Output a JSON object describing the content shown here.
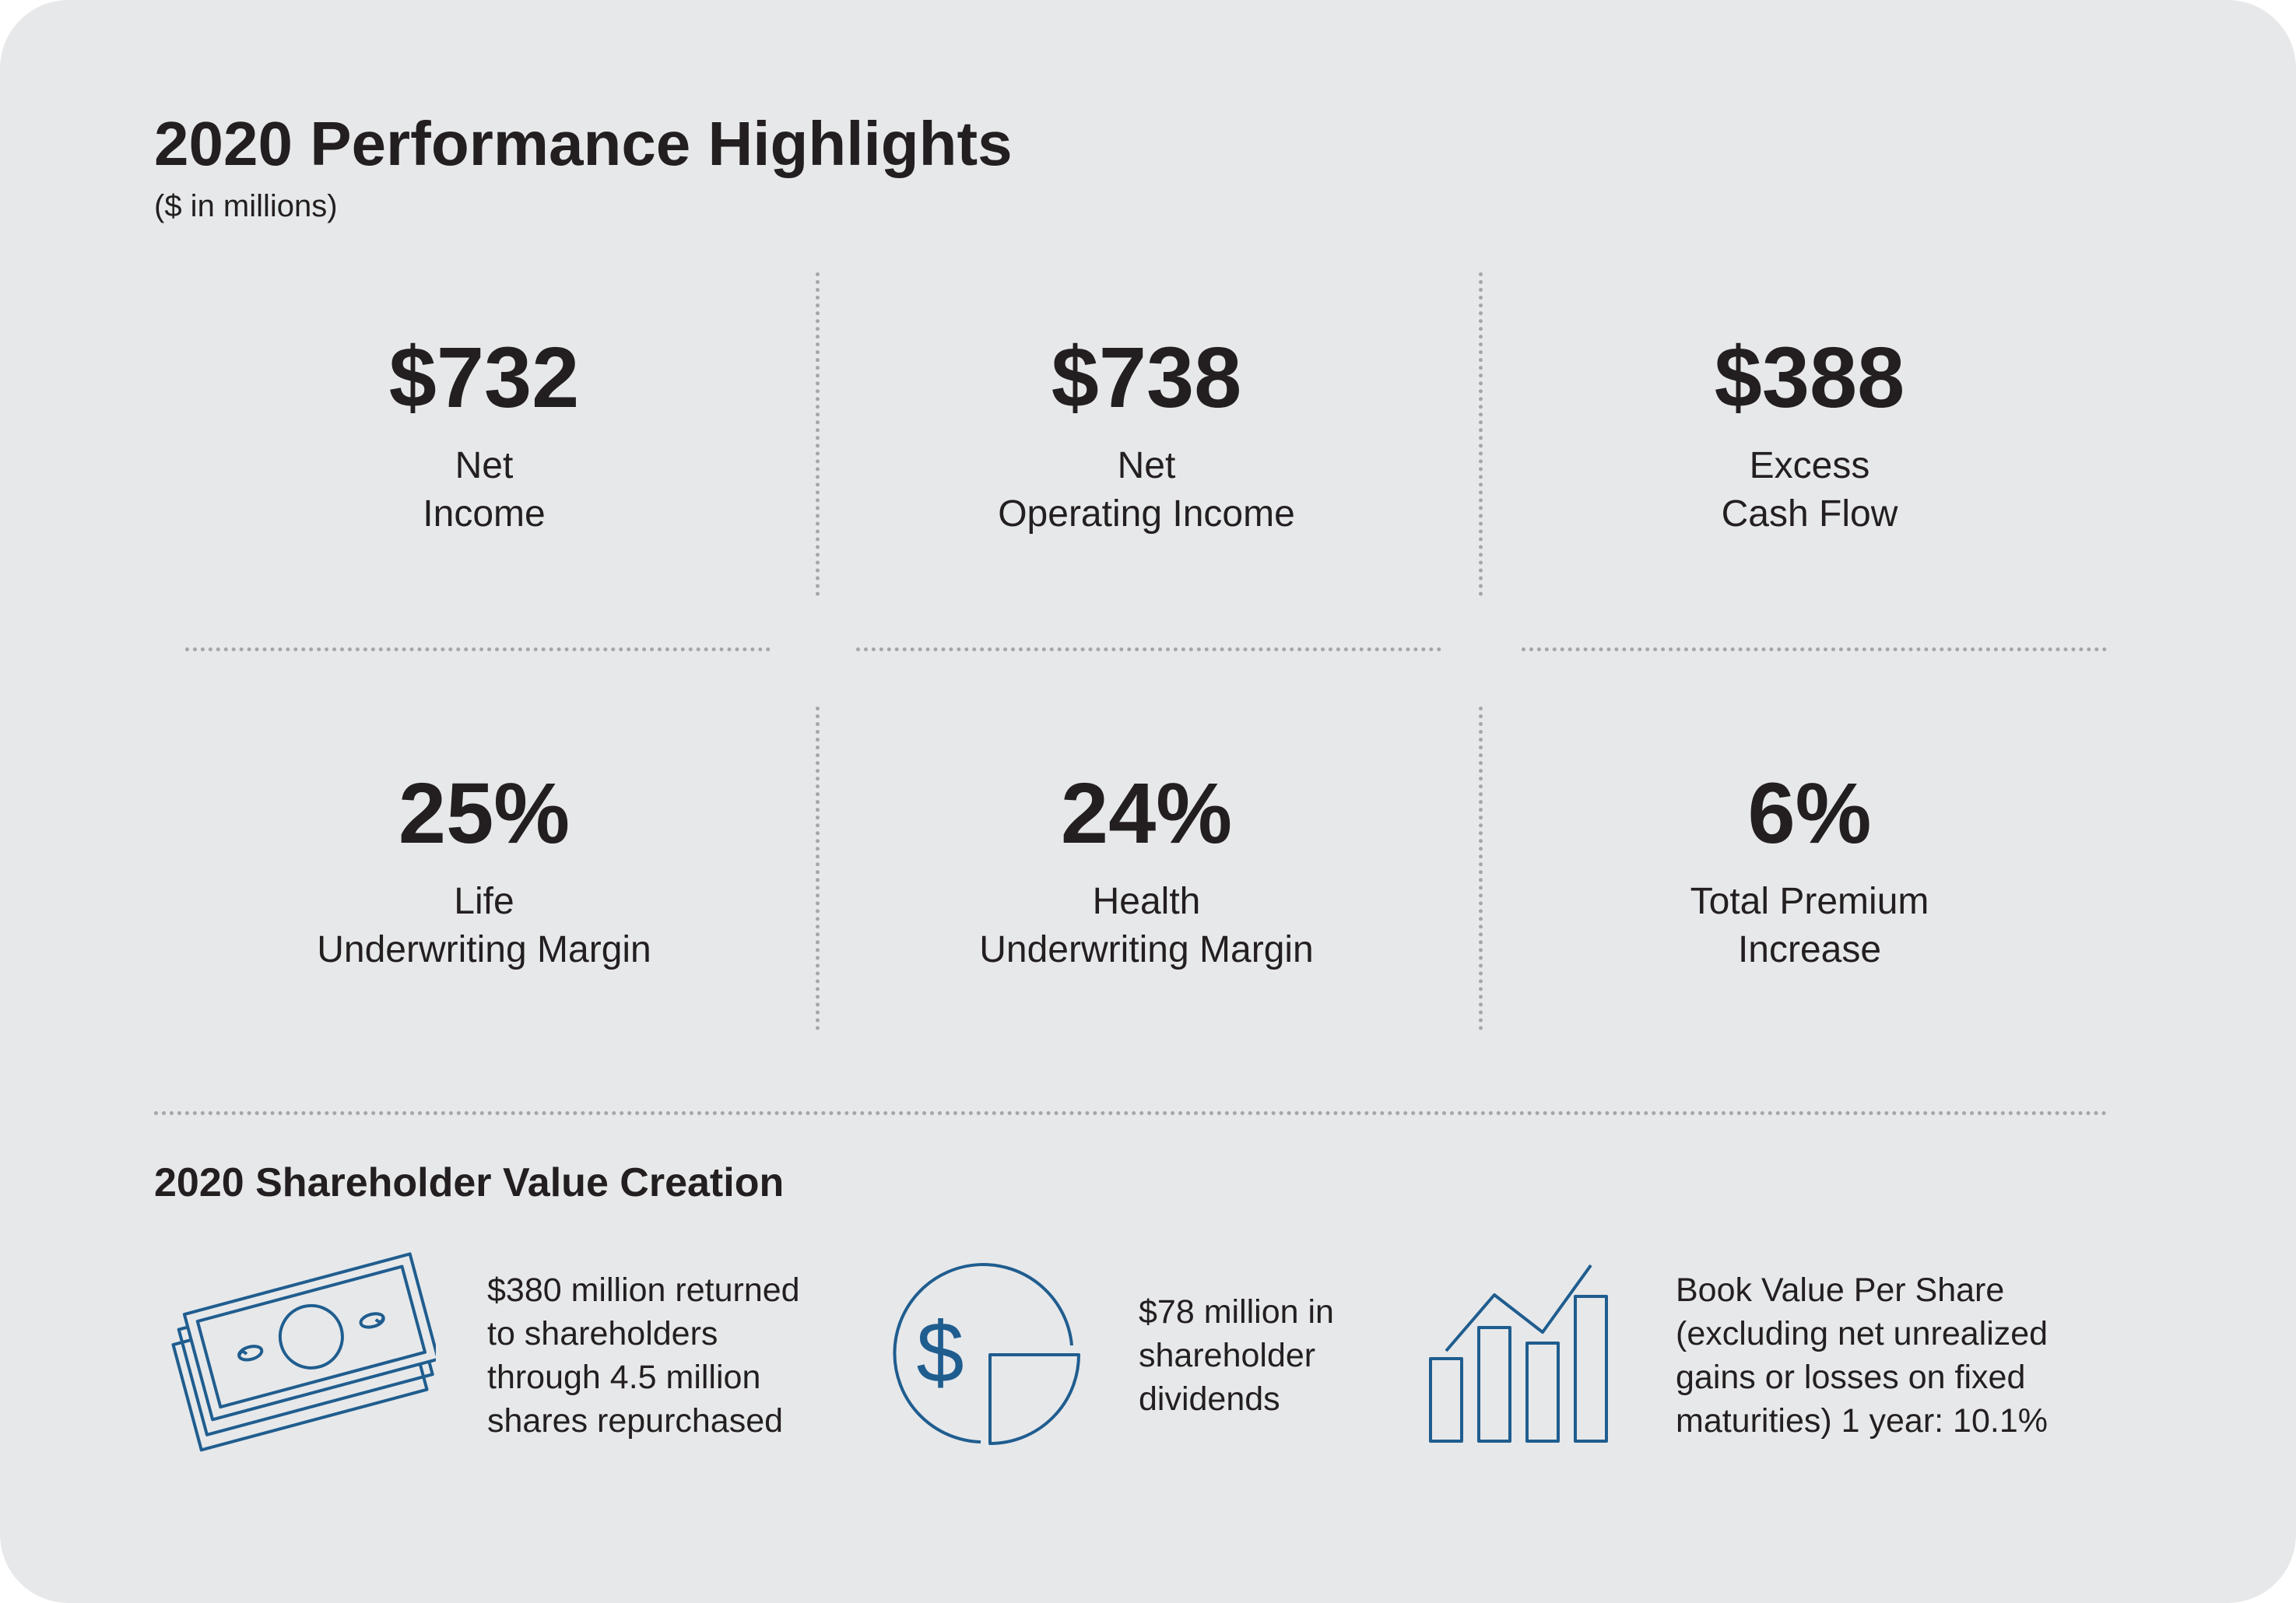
{
  "header": {
    "title": "2020 Performance Highlights",
    "subtitle": "($ in millions)"
  },
  "metrics": [
    {
      "value": "$732",
      "label": [
        "Net",
        "Income"
      ]
    },
    {
      "value": "$738",
      "label": [
        "Net",
        "Operating Income"
      ]
    },
    {
      "value": "$388",
      "label": [
        "Excess",
        "Cash Flow"
      ]
    },
    {
      "value": "25%",
      "label": [
        "Life",
        "Underwriting Margin"
      ]
    },
    {
      "value": "24%",
      "label": [
        "Health",
        "Underwriting Margin"
      ]
    },
    {
      "value": "6%",
      "label": [
        "Total Premium",
        "Increase"
      ]
    }
  ],
  "shareholder": {
    "title": "2020 Shareholder Value Creation",
    "items": [
      {
        "icon": "cash-stack-icon",
        "lines": [
          "$380 million returned",
          "to shareholders",
          "through 4.5 million",
          "shares repurchased"
        ]
      },
      {
        "icon": "dollar-pie-chart-icon",
        "lines": [
          "$78 million in",
          "shareholder",
          "dividends"
        ]
      },
      {
        "icon": "bar-chart-growth-icon",
        "lines": [
          "Book Value Per Share",
          "(excluding net unrealized",
          "gains or losses on fixed",
          "maturities) 1 year: 10.1%"
        ]
      }
    ]
  },
  "colors": {
    "background": "#e7e8ea",
    "text": "#231f20",
    "icon": "#1f5d8f",
    "dots": "#a5a6aa"
  }
}
